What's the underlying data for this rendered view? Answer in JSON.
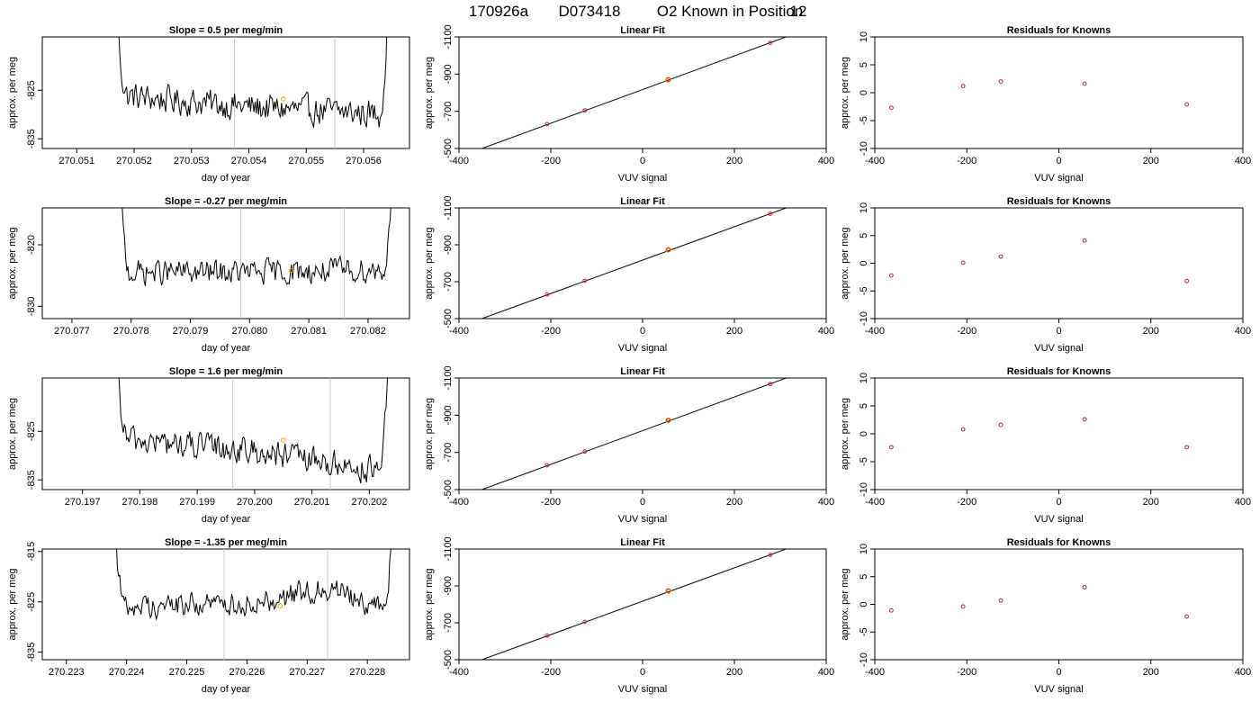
{
  "figure_title": {
    "run": "170926a",
    "tank": "D073418",
    "text": "O2 Known in Position",
    "position": "12"
  },
  "chart_data": [
    {
      "panel": "row1-timeseries",
      "type": "line",
      "title": "Slope =  0.5  per meg/min",
      "xlabel": "day of year",
      "ylabel": "approx. per meg",
      "xlim": [
        270.0504,
        270.0568
      ],
      "ylim": [
        -837,
        -814
      ],
      "y_reversed": true,
      "xticks": [
        270.051,
        270.052,
        270.053,
        270.054,
        270.055,
        270.056
      ],
      "xtick_labels": [
        "270.051",
        "270.052",
        "270.053",
        "270.054",
        "270.055",
        "270.056"
      ],
      "yticks": [
        -825,
        -835
      ],
      "ytick_labels": [
        "-825",
        "-835"
      ],
      "trace_x_range": [
        270.05165,
        270.05645
      ],
      "trace_baseline": -828.5,
      "trace_noise": 2.6,
      "trace_trend": [
        [
          0,
          2.5
        ],
        [
          0.5,
          0
        ],
        [
          1,
          -1.5
        ]
      ],
      "vlines": [
        270.05375,
        270.0555
      ],
      "marker": {
        "x": 270.0546,
        "y": -826.8
      },
      "grid": false
    },
    {
      "panel": "row1-fit",
      "type": "scatter",
      "title": "Linear Fit",
      "xlabel": "VUV signal",
      "ylabel": "approx. per meg",
      "xlim": [
        -400,
        400
      ],
      "ylim": [
        -500,
        -1100
      ],
      "y_reversed": true,
      "xticks": [
        -400,
        -200,
        0,
        200,
        400
      ],
      "xtick_labels": [
        "-400",
        "-200",
        "0",
        "200",
        "400"
      ],
      "yticks": [
        -500,
        -700,
        -900,
        -1100
      ],
      "ytick_labels": [
        "-500",
        "-700",
        "-900",
        "-1100"
      ],
      "points": [
        {
          "x": -364,
          "y": -487
        },
        {
          "x": -208,
          "y": -631
        },
        {
          "x": -126,
          "y": -705
        },
        {
          "x": 56,
          "y": -870
        },
        {
          "x": 278,
          "y": -1068
        }
      ],
      "highlight_index": 3,
      "fit_line": [
        [
          -370,
          -482
        ],
        [
          390,
          -1170
        ]
      ],
      "grid": false
    },
    {
      "panel": "row1-residuals",
      "type": "scatter",
      "title": "Residuals for Knowns",
      "xlabel": "VUV signal",
      "ylabel": "approx. per meg",
      "xlim": [
        -400,
        400
      ],
      "ylim": [
        -10,
        10
      ],
      "xticks": [
        -400,
        -200,
        0,
        200,
        400
      ],
      "xtick_labels": [
        "-400",
        "-200",
        "0",
        "200",
        "400"
      ],
      "yticks": [
        10,
        5,
        0,
        -5,
        -10
      ],
      "ytick_labels": [
        "10",
        "5",
        "0",
        "-5",
        "-10"
      ],
      "points": [
        {
          "x": -364,
          "y": -2.7
        },
        {
          "x": -208,
          "y": 1.2
        },
        {
          "x": -126,
          "y": 2.0
        },
        {
          "x": 56,
          "y": 1.6
        },
        {
          "x": 278,
          "y": -2.1
        }
      ],
      "grid": false
    },
    {
      "panel": "row2-timeseries",
      "type": "line",
      "title": "Slope =  -0.27  per meg/min",
      "xlabel": "day of year",
      "ylabel": "approx. per meg",
      "xlim": [
        270.0765,
        270.0827
      ],
      "ylim": [
        -832,
        -814
      ],
      "y_reversed": true,
      "xticks": [
        270.077,
        270.078,
        270.079,
        270.08,
        270.081,
        270.082
      ],
      "xtick_labels": [
        "270.077",
        "270.078",
        "270.079",
        "270.080",
        "270.081",
        "270.082"
      ],
      "yticks": [
        -820,
        -830
      ],
      "ytick_labels": [
        "-820",
        "-830"
      ],
      "trace_x_range": [
        270.07775,
        270.08245
      ],
      "trace_baseline": -824.5,
      "trace_noise": 1.8,
      "trace_trend": [
        [
          0,
          0
        ],
        [
          0.5,
          0
        ],
        [
          1,
          0.5
        ]
      ],
      "vlines": [
        270.07985,
        270.0816
      ],
      "marker": {
        "x": 270.0807,
        "y": -824.2
      },
      "grid": false
    },
    {
      "panel": "row2-fit",
      "type": "scatter",
      "title": "Linear Fit",
      "xlabel": "VUV signal",
      "ylabel": "approx. per meg",
      "xlim": [
        -400,
        400
      ],
      "ylim": [
        -500,
        -1100
      ],
      "y_reversed": true,
      "xticks": [
        -400,
        -200,
        0,
        200,
        400
      ],
      "xtick_labels": [
        "-400",
        "-200",
        "0",
        "200",
        "400"
      ],
      "yticks": [
        -500,
        -700,
        -900,
        -1100
      ],
      "ytick_labels": [
        "-500",
        "-700",
        "-900",
        "-1100"
      ],
      "points": [
        {
          "x": -364,
          "y": -487
        },
        {
          "x": -208,
          "y": -631
        },
        {
          "x": -126,
          "y": -705
        },
        {
          "x": 56,
          "y": -873
        },
        {
          "x": 278,
          "y": -1068
        }
      ],
      "highlight_index": 3,
      "fit_line": [
        [
          -370,
          -482
        ],
        [
          390,
          -1170
        ]
      ],
      "grid": false
    },
    {
      "panel": "row2-residuals",
      "type": "scatter",
      "title": "Residuals for Knowns",
      "xlabel": "VUV signal",
      "ylabel": "approx. per meg",
      "xlim": [
        -400,
        400
      ],
      "ylim": [
        -10,
        10
      ],
      "xticks": [
        -400,
        -200,
        0,
        200,
        400
      ],
      "xtick_labels": [
        "-400",
        "-200",
        "0",
        "200",
        "400"
      ],
      "yticks": [
        10,
        5,
        0,
        -5,
        -10
      ],
      "ytick_labels": [
        "10",
        "5",
        "0",
        "-5",
        "-10"
      ],
      "points": [
        {
          "x": -364,
          "y": -2.2
        },
        {
          "x": -208,
          "y": 0.1
        },
        {
          "x": -126,
          "y": 1.2
        },
        {
          "x": 56,
          "y": 4.1
        },
        {
          "x": 278,
          "y": -3.2
        }
      ],
      "grid": false
    },
    {
      "panel": "row3-timeseries",
      "type": "line",
      "title": "Slope =  1.6  per meg/min",
      "xlabel": "day of year",
      "ylabel": "approx. per meg",
      "xlim": [
        270.1963,
        270.2027
      ],
      "ylim": [
        -837,
        -814
      ],
      "y_reversed": true,
      "xticks": [
        270.197,
        270.198,
        270.199,
        270.2,
        270.201,
        270.202
      ],
      "xtick_labels": [
        "270.197",
        "270.198",
        "270.199",
        "270.200",
        "270.201",
        "270.202"
      ],
      "yticks": [
        -825,
        -835
      ],
      "ytick_labels": [
        "-825",
        "-835"
      ],
      "trace_x_range": [
        270.19755,
        270.20235
      ],
      "trace_baseline": -829,
      "trace_noise": 2.5,
      "trace_trend": [
        [
          0,
          2.5
        ],
        [
          0.5,
          0
        ],
        [
          1,
          -4.5
        ]
      ],
      "vlines": [
        270.19962,
        270.20132
      ],
      "marker": {
        "x": 270.2005,
        "y": -826.8
      },
      "grid": false
    },
    {
      "panel": "row3-fit",
      "type": "scatter",
      "title": "Linear Fit",
      "xlabel": "VUV signal",
      "ylabel": "approx. per meg",
      "xlim": [
        -400,
        400
      ],
      "ylim": [
        -500,
        -1100
      ],
      "y_reversed": true,
      "xticks": [
        -400,
        -200,
        0,
        200,
        400
      ],
      "xtick_labels": [
        "-400",
        "-200",
        "0",
        "200",
        "400"
      ],
      "yticks": [
        -500,
        -700,
        -900,
        -1100
      ],
      "ytick_labels": [
        "-500",
        "-700",
        "-900",
        "-1100"
      ],
      "points": [
        {
          "x": -364,
          "y": -487
        },
        {
          "x": -208,
          "y": -631
        },
        {
          "x": -126,
          "y": -705
        },
        {
          "x": 56,
          "y": -873
        },
        {
          "x": 278,
          "y": -1068
        }
      ],
      "highlight_index": 3,
      "fit_line": [
        [
          -370,
          -482
        ],
        [
          390,
          -1170
        ]
      ],
      "grid": false
    },
    {
      "panel": "row3-residuals",
      "type": "scatter",
      "title": "Residuals for Knowns",
      "xlabel": "VUV signal",
      "ylabel": "approx. per meg",
      "xlim": [
        -400,
        400
      ],
      "ylim": [
        -10,
        10
      ],
      "xticks": [
        -400,
        -200,
        0,
        200,
        400
      ],
      "xtick_labels": [
        "-400",
        "-200",
        "0",
        "200",
        "400"
      ],
      "yticks": [
        10,
        5,
        0,
        -5,
        -10
      ],
      "ytick_labels": [
        "10",
        "5",
        "0",
        "-5",
        "-10"
      ],
      "points": [
        {
          "x": -364,
          "y": -2.4
        },
        {
          "x": -208,
          "y": 0.8
        },
        {
          "x": -126,
          "y": 1.6
        },
        {
          "x": 56,
          "y": 2.6
        },
        {
          "x": 278,
          "y": -2.4
        }
      ],
      "grid": false
    },
    {
      "panel": "row4-timeseries",
      "type": "line",
      "title": "Slope =  -1.35  per meg/min",
      "xlabel": "day of year",
      "ylabel": "approx. per meg",
      "xlim": [
        270.2226,
        270.2287
      ],
      "ylim": [
        -836.5,
        -814.5
      ],
      "y_reversed": true,
      "xticks": [
        270.223,
        270.224,
        270.225,
        270.226,
        270.227,
        270.228
      ],
      "xtick_labels": [
        "270.223",
        "270.224",
        "270.225",
        "270.226",
        "270.227",
        "270.228"
      ],
      "yticks": [
        -815,
        -825,
        -835
      ],
      "ytick_labels": [
        "-815",
        "-825",
        "-835"
      ],
      "trace_x_range": [
        270.22375,
        270.22845
      ],
      "trace_baseline": -825.5,
      "trace_noise": 2.1,
      "trace_trend": [
        [
          0,
          -0.5
        ],
        [
          0.5,
          0.3
        ],
        [
          0.78,
          3.5
        ],
        [
          1,
          -2
        ]
      ],
      "vlines": [
        270.22562,
        270.22734
      ],
      "marker": {
        "x": 270.22655,
        "y": -825.8
      },
      "grid": false
    },
    {
      "panel": "row4-fit",
      "type": "scatter",
      "title": "Linear Fit",
      "xlabel": "VUV signal",
      "ylabel": "approx. per meg",
      "xlim": [
        -400,
        400
      ],
      "ylim": [
        -500,
        -1100
      ],
      "y_reversed": true,
      "xticks": [
        -400,
        -200,
        0,
        200,
        400
      ],
      "xtick_labels": [
        "-400",
        "-200",
        "0",
        "200",
        "400"
      ],
      "yticks": [
        -500,
        -700,
        -900,
        -1100
      ],
      "ytick_labels": [
        "-500",
        "-700",
        "-900",
        "-1100"
      ],
      "points": [
        {
          "x": -364,
          "y": -487
        },
        {
          "x": -208,
          "y": -631
        },
        {
          "x": -126,
          "y": -705
        },
        {
          "x": 56,
          "y": -873
        },
        {
          "x": 278,
          "y": -1068
        }
      ],
      "highlight_index": 3,
      "fit_line": [
        [
          -370,
          -482
        ],
        [
          390,
          -1170
        ]
      ],
      "grid": false
    },
    {
      "panel": "row4-residuals",
      "type": "scatter",
      "title": "Residuals for Knowns",
      "xlabel": "VUV signal",
      "ylabel": "approx. per meg",
      "xlim": [
        -400,
        400
      ],
      "ylim": [
        -10,
        10
      ],
      "xticks": [
        -400,
        -200,
        0,
        200,
        400
      ],
      "xtick_labels": [
        "-400",
        "-200",
        "0",
        "200",
        "400"
      ],
      "yticks": [
        10,
        5,
        0,
        -5,
        -10
      ],
      "ytick_labels": [
        "10",
        "5",
        "0",
        "-5",
        "-10"
      ],
      "points": [
        {
          "x": -364,
          "y": -1.1
        },
        {
          "x": -208,
          "y": -0.4
        },
        {
          "x": -126,
          "y": 0.7
        },
        {
          "x": 56,
          "y": 3.1
        },
        {
          "x": 278,
          "y": -2.2
        }
      ],
      "grid": false
    }
  ],
  "colors": {
    "axis": "#000000",
    "trace": "#000000",
    "vline": "#c8c8c8",
    "marker_orange": "#ffa500",
    "point_red": "#d02030",
    "fit_line": "#000000"
  }
}
